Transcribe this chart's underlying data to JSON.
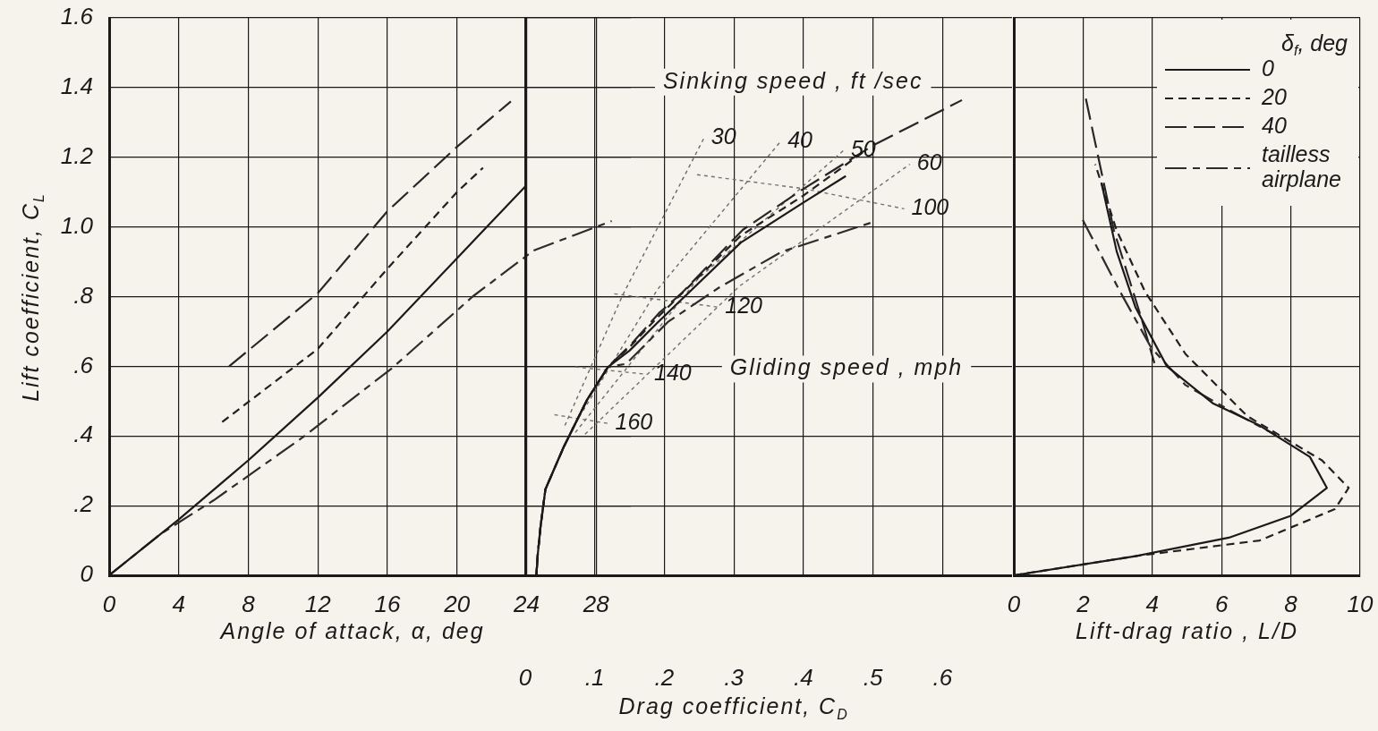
{
  "chart_data": [
    {
      "type": "line",
      "xlabel": "Angle of attack, α, deg",
      "ylabel": "Lift coefficient, C$_{L}$",
      "xlim": [
        0,
        30
      ],
      "xticks": [
        0,
        4,
        8,
        12,
        16,
        20,
        24,
        28
      ],
      "ylim": [
        0,
        1.6
      ],
      "yticks": [
        0,
        {
          "value": 0.2,
          "label": ".2"
        },
        {
          "value": 0.4,
          "label": ".4"
        },
        {
          "value": 0.6,
          "label": ".6"
        },
        {
          "value": 0.8,
          "label": ".8"
        },
        {
          "value": 1,
          "label": "1.0"
        },
        1.2,
        1.4,
        1.6
      ],
      "grid": true,
      "legend": false,
      "marker": "none",
      "series": [
        {
          "color": "#1a1a1a",
          "line_style": "solid",
          "x": [
            0,
            4,
            8,
            12,
            16,
            20,
            24
          ],
          "values": [
            0,
            0.16,
            0.33,
            0.51,
            0.7,
            0.91,
            1.12
          ]
        },
        {
          "color": "#202020",
          "line_style": "dashed",
          "x": [
            6.5,
            12,
            16,
            20,
            21.5
          ],
          "values": [
            0.44,
            0.65,
            0.88,
            1.1,
            1.17
          ]
        },
        {
          "color": "#262626",
          "line_style": "longdash",
          "x": [
            6.9,
            12,
            16,
            20,
            23.1
          ],
          "values": [
            0.6,
            0.81,
            1.045,
            1.23,
            1.36
          ]
        },
        {
          "color": "#2c2c2c",
          "line_style": "dashdot",
          "x": [
            0,
            3,
            6,
            11.1,
            16.3,
            20.9,
            24.4,
            28.9
          ],
          "values": [
            0,
            0.12,
            0.215,
            0.395,
            0.596,
            0.8,
            0.932,
            1.017
          ]
        }
      ]
    },
    {
      "type": "line",
      "xlabel": "Drag coefficient, C$_{D}$",
      "xlim": [
        0,
        0.7
      ],
      "xticks": [
        0,
        {
          "value": 0.1,
          "label": ".1"
        },
        {
          "value": 0.2,
          "label": ".2"
        },
        {
          "value": 0.3,
          "label": ".3"
        },
        {
          "value": 0.4,
          "label": ".4"
        },
        {
          "value": 0.5,
          "label": ".5"
        },
        {
          "value": 0.6,
          "label": ".6"
        }
      ],
      "ylim": [
        0,
        1.6
      ],
      "yticks": [
        0,
        0.2,
        0.4,
        0.6,
        0.8,
        1,
        1.2,
        1.4,
        1.6
      ],
      "tick_labels": "x",
      "grid": true,
      "legend": false,
      "marker": "none",
      "annotations": [
        "Sinking speed , ft /sec",
        "Gliding speed , mph"
      ],
      "series": [
        {
          "color": "#1a1a1a",
          "line_style": "solid",
          "x": [
            0.016,
            0.018,
            0.022,
            0.029,
            0.055,
            0.089,
            0.119,
            0.15,
            0.19,
            0.31,
            0.4,
            0.461
          ],
          "values": [
            0,
            0.06,
            0.14,
            0.247,
            0.367,
            0.504,
            0.598,
            0.645,
            0.725,
            0.955,
            1.07,
            1.146
          ]
        },
        {
          "color": "#202020",
          "line_style": "dashed",
          "x": [
            0.016,
            0.018,
            0.022,
            0.029,
            0.055,
            0.089,
            0.119,
            0.15,
            0.19,
            0.31,
            0.4,
            0.489
          ],
          "values": [
            0,
            0.06,
            0.14,
            0.247,
            0.367,
            0.504,
            0.598,
            0.655,
            0.74,
            0.975,
            1.09,
            1.219
          ]
        },
        {
          "color": "#262626",
          "line_style": "longdash",
          "x": [
            0.016,
            0.018,
            0.022,
            0.029,
            0.055,
            0.089,
            0.119,
            0.154,
            0.192,
            0.226,
            0.313,
            0.399,
            0.502,
            0.628
          ],
          "values": [
            0,
            0.06,
            0.14,
            0.247,
            0.367,
            0.504,
            0.598,
            0.667,
            0.752,
            0.812,
            0.992,
            1.108,
            1.236,
            1.364
          ]
        },
        {
          "color": "#2c2c2c",
          "line_style": "dashdot",
          "x": [
            0.016,
            0.018,
            0.022,
            0.029,
            0.055,
            0.089,
            0.119,
            0.145,
            0.205,
            0.278,
            0.368,
            0.497
          ],
          "values": [
            0,
            0.06,
            0.14,
            0.247,
            0.367,
            0.504,
            0.598,
            0.607,
            0.727,
            0.825,
            0.928,
            1.012
          ]
        },
        {
          "name": "30",
          "color": "#6a6a6a",
          "line_style": "dotted",
          "x": [
            0.057,
            0.14,
            0.257
          ],
          "values": [
            0.43,
            0.804,
            1.255
          ]
        },
        {
          "name": "40",
          "color": "#6c6c6c",
          "line_style": "dotted",
          "x": [
            0.067,
            0.19,
            0.367
          ],
          "values": [
            0.42,
            0.82,
            1.245
          ]
        },
        {
          "name": "50",
          "color": "#6e6e6e",
          "line_style": "dotted",
          "x": [
            0.072,
            0.248,
            0.458
          ],
          "values": [
            0.41,
            0.85,
            1.22
          ]
        },
        {
          "name": "60",
          "color": "#707070",
          "line_style": "dotted",
          "x": [
            0.086,
            0.308,
            0.553
          ],
          "values": [
            0.405,
            0.83,
            1.18
          ]
        },
        {
          "name": "100",
          "color": "#727272",
          "line_style": "dotted",
          "x": [
            0.247,
            0.4,
            0.545
          ],
          "values": [
            1.15,
            1.11,
            1.052
          ]
        },
        {
          "name": "120",
          "color": "#747474",
          "line_style": "dotted",
          "x": [
            0.128,
            0.277
          ],
          "values": [
            0.808,
            0.77
          ]
        },
        {
          "name": "140",
          "color": "#767676",
          "line_style": "dotted",
          "x": [
            0.072,
            0.175
          ],
          "values": [
            0.598,
            0.577
          ]
        },
        {
          "name": "160",
          "color": "#787878",
          "line_style": "dotted",
          "x": [
            0.042,
            0.119
          ],
          "values": [
            0.461,
            0.436
          ]
        }
      ]
    },
    {
      "type": "line",
      "xlabel": "Lift-drag ratio , L/D",
      "xlim": [
        0,
        10
      ],
      "xticks": [
        0,
        2,
        4,
        6,
        8,
        10
      ],
      "ylim": [
        0,
        1.6
      ],
      "yticks": [
        0,
        0.2,
        0.4,
        0.6,
        0.8,
        1,
        1.2,
        1.4,
        1.6
      ],
      "tick_labels": "x",
      "grid": true,
      "legend": "top right",
      "legend_title": "δ$_{f}$, deg",
      "marker": "none",
      "series": [
        {
          "name": "0",
          "color": "#1a1a1a",
          "line_style": "solid",
          "x": [
            0,
            3.51,
            6.21,
            8,
            9.04,
            8.55,
            7.1,
            5.76,
            4.42,
            3.51,
            2.97,
            2.53
          ],
          "values": [
            0,
            0.055,
            0.108,
            0.171,
            0.251,
            0.34,
            0.43,
            0.493,
            0.6,
            0.77,
            0.93,
            1.127
          ]
        },
        {
          "name": "20",
          "color": "#202020",
          "line_style": "dashed",
          "x": [
            0,
            3.51,
            7.1,
            9.27,
            9.67,
            8.9,
            6.74,
            4.96,
            3.79,
            2.97,
            2.35
          ],
          "values": [
            0,
            0.055,
            0.1,
            0.19,
            0.251,
            0.33,
            0.457,
            0.635,
            0.814,
            0.99,
            1.18
          ]
        },
        {
          "name": "40",
          "color": "#262626",
          "line_style": "longdash",
          "x": [
            2.08,
            2.89,
            3.7,
            4.06
          ],
          "values": [
            1.368,
            0.99,
            0.733,
            0.609
          ]
        },
        {
          "name": "tailless airplane",
          "color": "#2c2c2c",
          "line_style": "dashdot",
          "x": [
            1.99,
            3.07,
            3.97,
            4.96,
            6.21,
            7.56
          ],
          "values": [
            1.02,
            0.814,
            0.653,
            0.546,
            0.475,
            0.403
          ]
        }
      ]
    }
  ]
}
